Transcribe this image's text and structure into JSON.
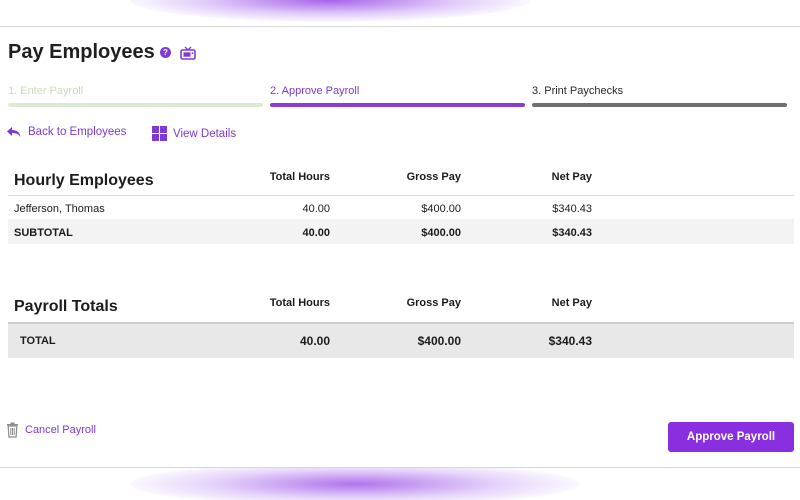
{
  "header": {
    "title": "Pay Employees",
    "help_icon": "question-circle-icon",
    "video_icon": "tv-icon"
  },
  "steps": [
    {
      "label": "1. Enter Payroll",
      "state": "completed"
    },
    {
      "label": "2. Approve Payroll",
      "state": "active"
    },
    {
      "label": "3. Print Paychecks",
      "state": "pending"
    }
  ],
  "actions": {
    "back_label": "Back to Employees",
    "details_label": "View Details"
  },
  "columns": {
    "hours": "Total Hours",
    "gross": "Gross Pay",
    "net": "Net Pay"
  },
  "hourly": {
    "title": "Hourly Employees",
    "rows": [
      {
        "name": "Jefferson, Thomas",
        "hours": "40.00",
        "gross": "$400.00",
        "net": "$340.43"
      }
    ],
    "subtotal": {
      "label": "SUBTOTAL",
      "hours": "40.00",
      "gross": "$400.00",
      "net": "$340.43"
    }
  },
  "totals": {
    "title": "Payroll Totals",
    "total": {
      "label": "TOTAL",
      "hours": "40.00",
      "gross": "$400.00",
      "net": "$340.43"
    }
  },
  "footer": {
    "cancel_label": "Cancel Payroll",
    "approve_label": "Approve Payroll"
  },
  "colors": {
    "accent": "#8a2fe0",
    "completed_step": "#dcead3",
    "pending_step": "#6f6f6f"
  }
}
